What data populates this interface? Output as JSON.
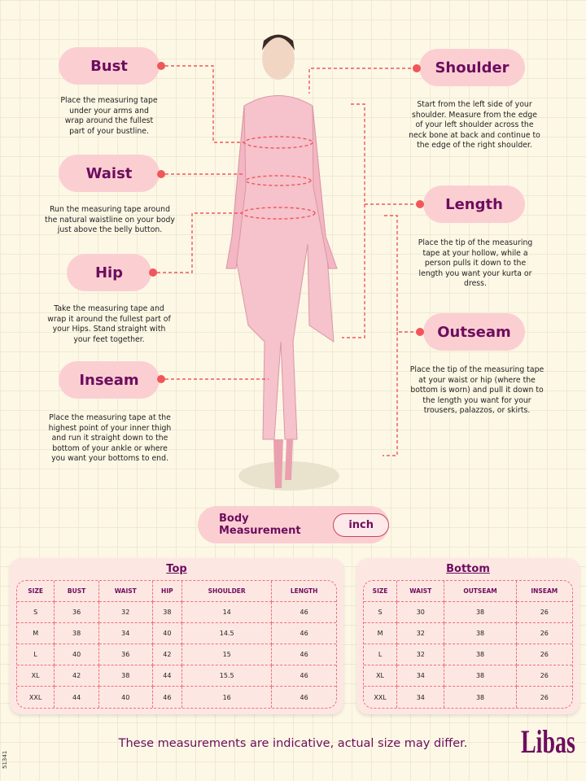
{
  "labels": {
    "bust": {
      "title": "Bust",
      "desc": "Place the measuring tape under your arms and wrap around the fullest part of your bustline."
    },
    "waist": {
      "title": "Waist",
      "desc": "Run the measuring tape around the natural waistline on your body just above the belly button."
    },
    "hip": {
      "title": "Hip",
      "desc": "Take the measuring tape and wrap it around the fullest part of your Hips. Stand straight with your feet together."
    },
    "inseam": {
      "title": "Inseam",
      "desc": "Place the measuring tape at the highest point of your inner thigh and run it straight down to the bottom of your ankle or where you want your bottoms to end."
    },
    "shoulder": {
      "title": "Shoulder",
      "desc": "Start from the left side of your shoulder. Measure from the edge of your left shoulder across the neck bone at back and continue to the edge of the right shoulder."
    },
    "length": {
      "title": "Length",
      "desc": "Place the tip of the measuring tape at your hollow, while a person pulls it down to the length you want your kurta or dress."
    },
    "outseam": {
      "title": "Outseam",
      "desc": "Place the tip of the measuring tape at your waist or hip (where the bottom is worn) and pull it down to the length you want for your trousers, palazzos, or skirts."
    }
  },
  "body_measurement": {
    "label": "Body Measurement",
    "unit": "inch"
  },
  "top": {
    "title": "Top",
    "headers": [
      "SIZE",
      "BUST",
      "WAIST",
      "HIP",
      "SHOULDER",
      "LENGTH"
    ],
    "rows": [
      [
        "S",
        "36",
        "32",
        "38",
        "14",
        "46"
      ],
      [
        "M",
        "38",
        "34",
        "40",
        "14.5",
        "46"
      ],
      [
        "L",
        "40",
        "36",
        "42",
        "15",
        "46"
      ],
      [
        "XL",
        "42",
        "38",
        "44",
        "15.5",
        "46"
      ],
      [
        "XXL",
        "44",
        "40",
        "46",
        "16",
        "46"
      ]
    ]
  },
  "bottom": {
    "title": "Bottom",
    "headers": [
      "SIZE",
      "WAIST",
      "OUTSEAM",
      "INSEAM"
    ],
    "rows": [
      [
        "S",
        "30",
        "38",
        "26"
      ],
      [
        "M",
        "32",
        "38",
        "26"
      ],
      [
        "L",
        "32",
        "38",
        "26"
      ],
      [
        "XL",
        "34",
        "38",
        "26"
      ],
      [
        "XXL",
        "34",
        "38",
        "26"
      ]
    ]
  },
  "footer": "These measurements are indicative, actual size may differ.",
  "brand": "Libas",
  "code": "51341",
  "colors": {
    "accent": "#6d0d5e",
    "pill": "#fbcfd2",
    "dash": "#f0575a"
  }
}
